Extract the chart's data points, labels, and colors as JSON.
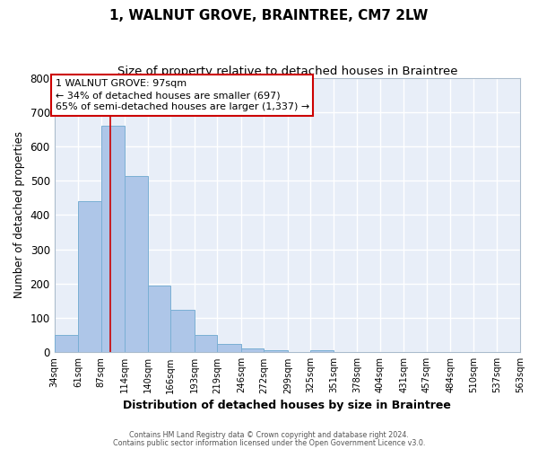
{
  "title": "1, WALNUT GROVE, BRAINTREE, CM7 2LW",
  "subtitle": "Size of property relative to detached houses in Braintree",
  "xlabel": "Distribution of detached houses by size in Braintree",
  "ylabel": "Number of detached properties",
  "bin_edges": [
    34,
    61,
    87,
    114,
    140,
    166,
    193,
    219,
    246,
    272,
    299,
    325,
    351,
    378,
    404,
    431,
    457,
    484,
    510,
    537,
    563
  ],
  "bar_heights": [
    50,
    440,
    660,
    515,
    195,
    125,
    50,
    25,
    10,
    5,
    0,
    5,
    0,
    0,
    0,
    0,
    0,
    0,
    0,
    0
  ],
  "bar_color": "#aec6e8",
  "bar_edge_color": "#7aafd4",
  "vline_x": 97,
  "vline_color": "#cc0000",
  "ylim": [
    0,
    800
  ],
  "yticks": [
    0,
    100,
    200,
    300,
    400,
    500,
    600,
    700,
    800
  ],
  "annotation_title": "1 WALNUT GROVE: 97sqm",
  "annotation_line1": "← 34% of detached houses are smaller (697)",
  "annotation_line2": "65% of semi-detached houses are larger (1,337) →",
  "annotation_box_facecolor": "#ffffff",
  "annotation_box_edgecolor": "#cc0000",
  "footer1": "Contains HM Land Registry data © Crown copyright and database right 2024.",
  "footer2": "Contains public sector information licensed under the Open Government Licence v3.0.",
  "fig_facecolor": "#ffffff",
  "plot_facecolor": "#e8eef8",
  "grid_color": "#ffffff",
  "title_fontsize": 11,
  "subtitle_fontsize": 9.5,
  "tick_labels": [
    "34sqm",
    "61sqm",
    "87sqm",
    "114sqm",
    "140sqm",
    "166sqm",
    "193sqm",
    "219sqm",
    "246sqm",
    "272sqm",
    "299sqm",
    "325sqm",
    "351sqm",
    "378sqm",
    "404sqm",
    "431sqm",
    "457sqm",
    "484sqm",
    "510sqm",
    "537sqm",
    "563sqm"
  ]
}
